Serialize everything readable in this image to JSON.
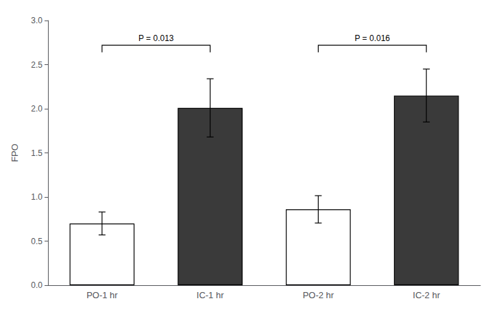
{
  "chart_data": {
    "type": "bar",
    "categories": [
      "PO-1 hr",
      "IC-1 hr",
      "PO-2 hr",
      "IC-2 hr"
    ],
    "values": [
      0.7,
      2.01,
      0.86,
      2.15
    ],
    "errors": [
      0.13,
      0.33,
      0.155,
      0.3
    ],
    "colors": [
      "#ffffff",
      "#3a3a3a",
      "#ffffff",
      "#3a3a3a"
    ],
    "ylabel": "FPO",
    "ylim": [
      0,
      3.0
    ],
    "yticks": [
      {
        "value": 0,
        "label": "0.0"
      },
      0.5,
      {
        "value": 1.0,
        "label": "1.0"
      },
      {
        "value": 1.5,
        "label": "1.5"
      },
      {
        "value": 2.0,
        "label": "2.0"
      },
      2.5,
      {
        "value": 3.0,
        "label": "3.0"
      }
    ],
    "grid": false,
    "annotations": [
      {
        "text": "P = 0.013",
        "from": "PO-1 hr",
        "to": "IC-1 hr",
        "y": 2.72,
        "height": 0.08
      },
      {
        "text": "P = 0.016",
        "from": "PO-2 hr",
        "to": "IC-2 hr",
        "y": 2.72,
        "height": 0.08
      }
    ]
  }
}
